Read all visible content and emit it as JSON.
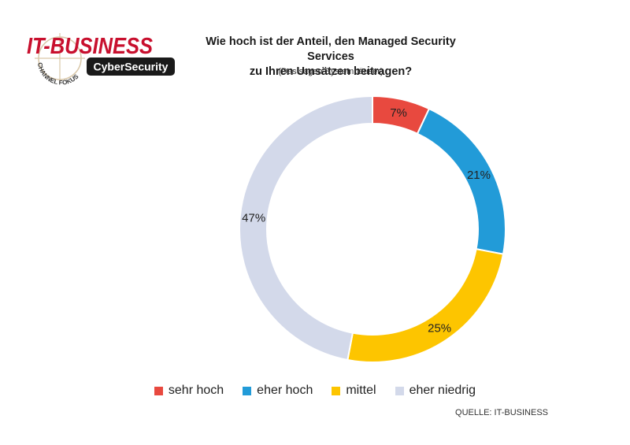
{
  "logo": {
    "brand": "IT-BUSINESS",
    "arc_text": "CHANNEL FOKUS",
    "badge": "CyberSecurity",
    "brand_color": "#c8102e",
    "badge_bg": "#1a1a1a"
  },
  "source": "QUELLE: IT-BUSINESS",
  "chart_data": {
    "type": "pie",
    "donut": true,
    "title_lines": [
      "Wie hoch ist der Anteil, den Managed Security Services",
      "zu Ihren Umsätzen beitragen?"
    ],
    "subtitle": "(Das sagen Systemhäuser)",
    "legend_position": "bottom",
    "slices": [
      {
        "label": "sehr hoch",
        "value": 7,
        "display": "7%",
        "color": "#e8493f"
      },
      {
        "label": "eher hoch",
        "value": 21,
        "display": "21%",
        "color": "#229bd8"
      },
      {
        "label": "mittel",
        "value": 25,
        "display": "25%",
        "color": "#fdc500"
      },
      {
        "label": "eher niedrig",
        "value": 47,
        "display": "47%",
        "color": "#d3d9ea"
      }
    ]
  }
}
